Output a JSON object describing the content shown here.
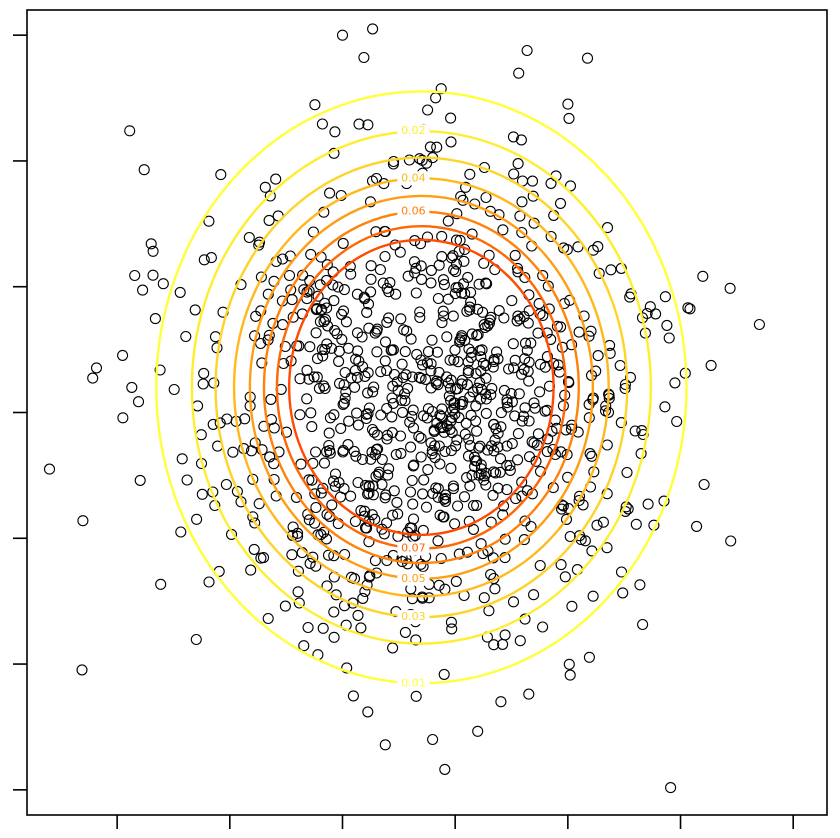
{
  "chart_data": {
    "type": "scatter",
    "title": "",
    "xlabel": "",
    "ylabel": "",
    "xlim": [
      -3.3,
      3.8
    ],
    "ylim": [
      -3.2,
      3.2
    ],
    "x_ticks": [
      -2.5,
      -1.5,
      -0.5,
      0.5,
      1.5,
      2.5,
      3.5
    ],
    "y_ticks": [
      -3,
      -2,
      -1,
      0,
      1,
      2,
      3
    ],
    "grid": false,
    "legend": "none",
    "point_marker": "open-circle",
    "point_color": "#000000",
    "points_seed": 20240613,
    "points_count": 1000,
    "points_mean": [
      0.2,
      0.1
    ],
    "points_sd": [
      1.0,
      1.0
    ],
    "outliers": [
      [
        -3.1,
        -0.45
      ],
      [
        3.2,
        0.7
      ],
      [
        1.6,
        -0.7
      ],
      [
        -0.5,
        3.0
      ],
      [
        0.3,
        -2.6
      ]
    ],
    "contours": {
      "center": [
        0.2,
        0.2
      ],
      "levels": [
        {
          "value": 0.01,
          "label": "0.01",
          "color": "#ffff3a"
        },
        {
          "value": 0.02,
          "label": "0.02",
          "color": "#ffee30"
        },
        {
          "value": 0.03,
          "label": "0.03",
          "color": "#ffd428"
        },
        {
          "value": 0.04,
          "label": "0.04",
          "color": "#ffb91d"
        },
        {
          "value": 0.05,
          "label": "0.05",
          "color": "#ff9e12"
        },
        {
          "value": 0.06,
          "label": "0.06",
          "color": "#ff820a"
        },
        {
          "value": 0.07,
          "label": "0.07",
          "color": "#ff6604"
        },
        {
          "value": 0.08,
          "label": "0.08",
          "color": "#ff4a00"
        }
      ],
      "visible_labels": [
        "0.01",
        "0.02",
        "0.03",
        "0.04",
        "0.05",
        "0.06",
        "0.07"
      ]
    }
  }
}
